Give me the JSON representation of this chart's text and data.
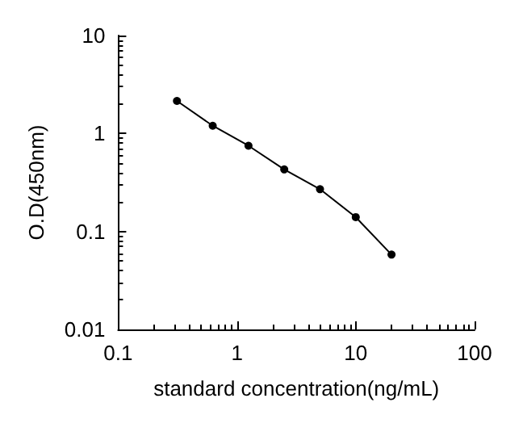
{
  "chart_data": {
    "type": "line",
    "xlabel": "standard concentration(ng/mL)",
    "ylabel": "O.D(450nm)",
    "log": "xy",
    "x": [
      0.3125,
      0.625,
      1.25,
      2.5,
      5,
      10,
      20
    ],
    "series": [
      {
        "color": "#000000",
        "values": [
          2.15,
          1.2,
          0.75,
          0.43,
          0.27,
          0.14,
          0.058
        ]
      }
    ],
    "xlim": [
      0.1,
      100
    ],
    "xticks": [
      0.1,
      1,
      10,
      100
    ],
    "ylim": [
      0.01,
      10
    ],
    "yticks": [
      0.01,
      0.1,
      1,
      10
    ],
    "grid": false,
    "marker": "circle",
    "line_style": "solid"
  }
}
